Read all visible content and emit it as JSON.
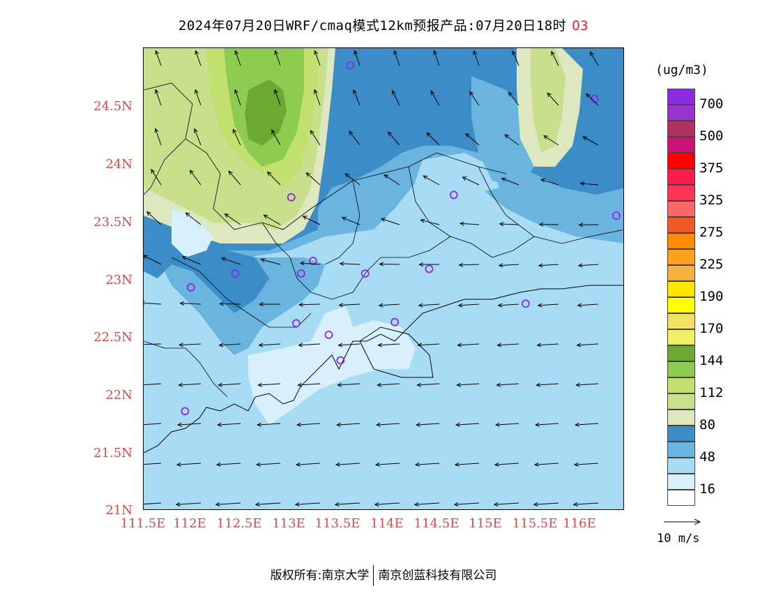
{
  "title": {
    "text": "2024年07月20日WRF/cmaq模式12km预报产品:07月20日18时",
    "species": "O3"
  },
  "axes": {
    "lat_labels": [
      "24.5N",
      "24N",
      "23.5N",
      "23N",
      "22.5N",
      "22N",
      "21.5N",
      "21N"
    ],
    "lon_labels": [
      "111.5E",
      "112E",
      "112.5E",
      "113E",
      "113.5E",
      "114E",
      "114.5E",
      "115E",
      "115.5E",
      "116E"
    ],
    "label_color": "#e34444"
  },
  "legend": {
    "units": "(ug/m3)",
    "levels": [
      {
        "color": "#8a2be2",
        "label": "700"
      },
      {
        "color": "#9932cc",
        "label": ""
      },
      {
        "color": "#b03060",
        "label": "500"
      },
      {
        "color": "#cc1177",
        "label": ""
      },
      {
        "color": "#ff0000",
        "label": "375"
      },
      {
        "color": "#ff1a4a",
        "label": ""
      },
      {
        "color": "#ff3355",
        "label": "325"
      },
      {
        "color": "#ff6666",
        "label": ""
      },
      {
        "color": "#f05a28",
        "label": "275"
      },
      {
        "color": "#ff8c00",
        "label": ""
      },
      {
        "color": "#ffa020",
        "label": "225"
      },
      {
        "color": "#f5b040",
        "label": ""
      },
      {
        "color": "#ffe600",
        "label": "190"
      },
      {
        "color": "#ffff00",
        "label": ""
      },
      {
        "color": "#f2e060",
        "label": "170"
      },
      {
        "color": "#f0f060",
        "label": ""
      },
      {
        "color": "#6aaa30",
        "label": "144"
      },
      {
        "color": "#8ccc50",
        "label": ""
      },
      {
        "color": "#c2e070",
        "label": "112"
      },
      {
        "color": "#c8e08c",
        "label": ""
      },
      {
        "color": "#dde8c0",
        "label": "80"
      },
      {
        "color": "#3c8cc8",
        "label": ""
      },
      {
        "color": "#6ab4e0",
        "label": "48"
      },
      {
        "color": "#a8dcf5",
        "label": ""
      },
      {
        "color": "#d8f0fc",
        "label": "16"
      },
      {
        "color": "#ffffff",
        "label": ""
      }
    ]
  },
  "wind_key": {
    "label": "10 m/s"
  },
  "sites": [
    {
      "lon": 113.6,
      "lat": 24.85
    },
    {
      "lon": 116.08,
      "lat": 24.56
    },
    {
      "lon": 113.0,
      "lat": 23.71
    },
    {
      "lon": 114.65,
      "lat": 23.73
    },
    {
      "lon": 116.3,
      "lat": 23.55
    },
    {
      "lon": 113.22,
      "lat": 23.16
    },
    {
      "lon": 112.43,
      "lat": 23.05
    },
    {
      "lon": 113.1,
      "lat": 23.05
    },
    {
      "lon": 113.75,
      "lat": 23.05
    },
    {
      "lon": 114.4,
      "lat": 23.09
    },
    {
      "lon": 111.98,
      "lat": 22.93
    },
    {
      "lon": 115.38,
      "lat": 22.79
    },
    {
      "lon": 113.05,
      "lat": 22.62
    },
    {
      "lon": 114.05,
      "lat": 22.63
    },
    {
      "lon": 113.38,
      "lat": 22.52
    },
    {
      "lon": 113.5,
      "lat": 22.3
    },
    {
      "lon": 111.92,
      "lat": 21.86
    }
  ],
  "footer": {
    "copyright": "版权所有:南京大学",
    "company": "南京创蓝科技有限公司"
  }
}
